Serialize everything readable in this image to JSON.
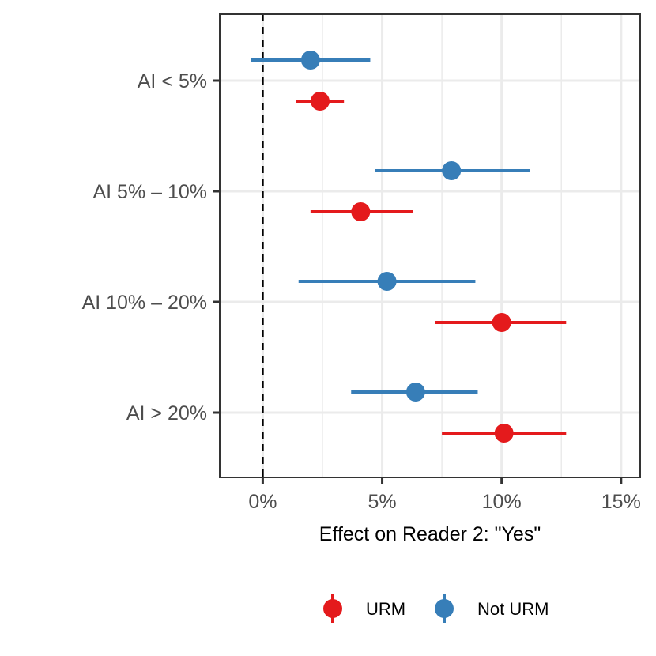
{
  "chart_data": {
    "type": "scatter",
    "subtype": "point-range (dot and whisker)",
    "title": "",
    "xlabel": "Effect on Reader 2: \"Yes\"",
    "ylabel": "",
    "xlim": [
      -1.8,
      15.8
    ],
    "x_ticks": [
      0,
      5,
      10,
      15
    ],
    "x_tick_labels": [
      "0%",
      "5%",
      "10%",
      "15%"
    ],
    "categories": [
      "AI < 5%",
      "AI 5% – 10%",
      "AI 10% – 20%",
      "AI > 20%"
    ],
    "reference_line": {
      "x": 0,
      "style": "dashed"
    },
    "grid": true,
    "legend_position": "bottom",
    "series": [
      {
        "name": "URM",
        "color": "#E41A1C",
        "estimates": [
          2.4,
          4.1,
          10.0,
          10.1
        ],
        "ci_low": [
          1.4,
          2.0,
          7.2,
          7.5
        ],
        "ci_high": [
          3.4,
          6.3,
          12.7,
          12.7
        ]
      },
      {
        "name": "Not URM",
        "color": "#377EB8",
        "estimates": [
          2.0,
          7.9,
          5.2,
          6.4
        ],
        "ci_low": [
          -0.5,
          4.7,
          1.5,
          3.7
        ],
        "ci_high": [
          4.5,
          11.2,
          8.9,
          9.0
        ]
      }
    ]
  }
}
